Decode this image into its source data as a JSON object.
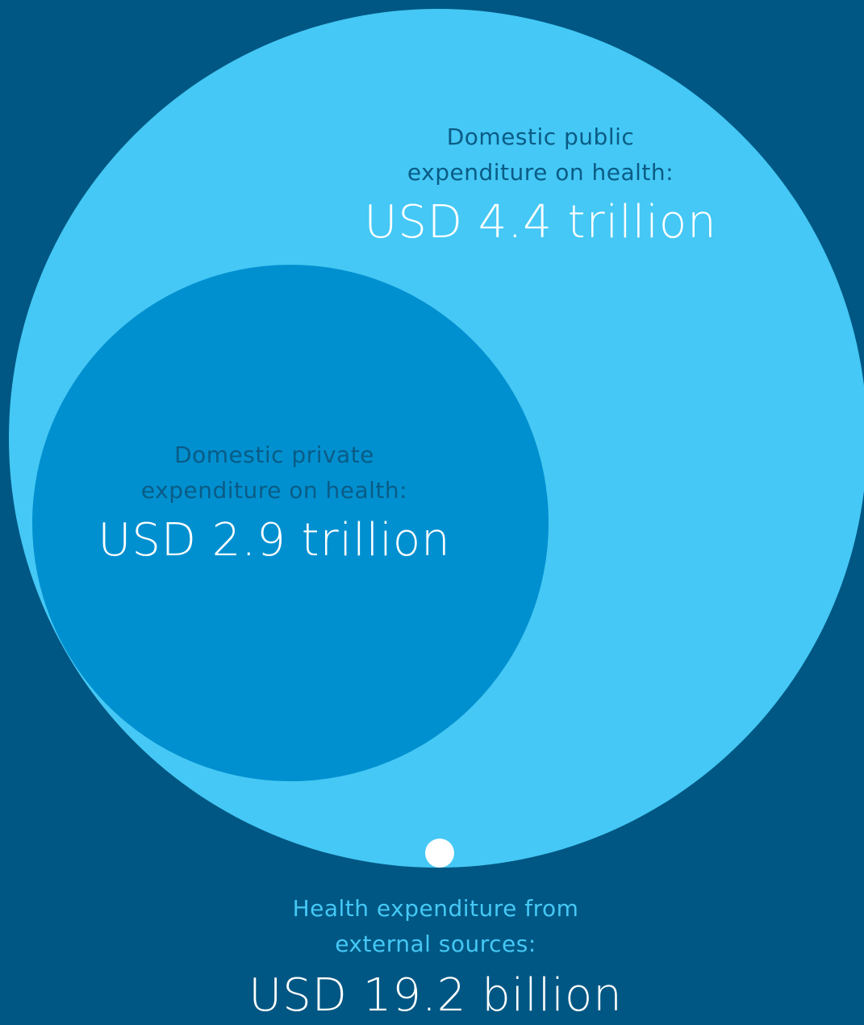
{
  "chart_data": {
    "type": "bubble",
    "series": [
      {
        "label_line1": "Domestic public",
        "label_line2": "expenditure on health:",
        "amount": "USD 4.4 trillion",
        "value": 4.4,
        "unit": "trillion USD",
        "color": "#45c8f5"
      },
      {
        "label_line1": "Domestic private",
        "label_line2": "expenditure on health:",
        "amount": "USD 2.9 trillion",
        "value": 2.9,
        "unit": "trillion USD",
        "color": "#0090d0"
      },
      {
        "label_line1": "Health expenditure from",
        "label_line2": "external sources:",
        "amount": "USD 19.2 billion",
        "value": 0.0192,
        "unit": "trillion USD",
        "color": "#ffffff"
      }
    ],
    "background": "#005783"
  }
}
